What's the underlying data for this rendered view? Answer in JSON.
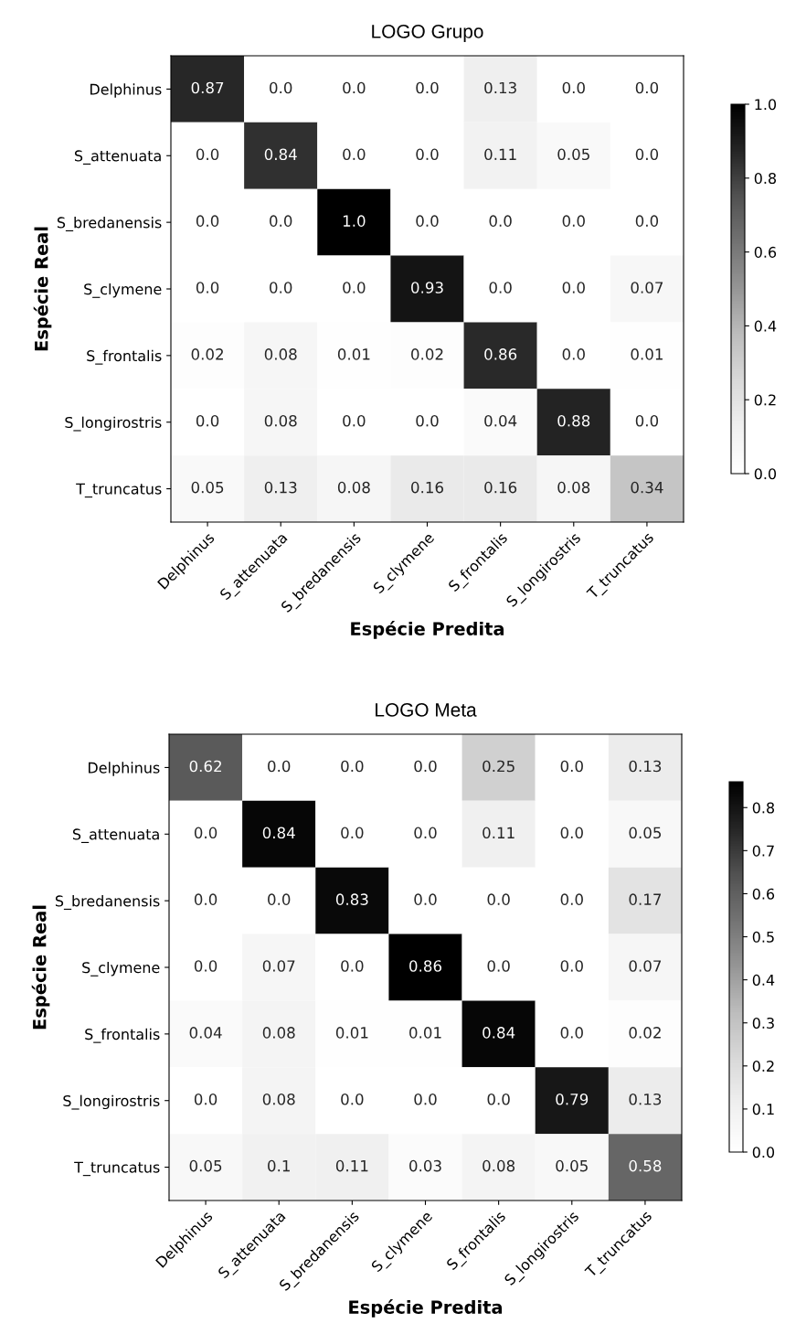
{
  "chart_data": [
    {
      "type": "heatmap",
      "title": "LOGO Grupo",
      "xlabel": "Espécie Predita",
      "ylabel": "Espécie Real",
      "categories": [
        "Delphinus",
        "S_attenuata",
        "S_bredanensis",
        "S_clymene",
        "S_frontalis",
        "S_longirostris",
        "T_truncatus"
      ],
      "y_categories": [
        "Delphinus",
        "S_attenuata",
        "S_bredanensis",
        "S_clymene",
        "S_frontalis",
        "S_longirostris",
        "T_truncatus"
      ],
      "cells": [
        [
          0.87,
          0,
          0,
          0,
          0.13,
          0,
          0
        ],
        [
          0,
          0.84,
          0,
          0,
          0.11,
          0.05,
          0
        ],
        [
          0,
          0,
          1.0,
          0,
          0,
          0,
          0
        ],
        [
          0,
          0,
          0,
          0.93,
          0,
          0,
          0.07
        ],
        [
          0.02,
          0.08,
          0.01,
          0.02,
          0.86,
          0,
          0.01
        ],
        [
          0,
          0.08,
          0,
          0,
          0.04,
          0.88,
          0
        ],
        [
          0.05,
          0.13,
          0.08,
          0.16,
          0.16,
          0.08,
          0.34
        ]
      ],
      "cell_labels": [
        [
          "0.87",
          "0.0",
          "0.0",
          "0.0",
          "0.13",
          "0.0",
          "0.0"
        ],
        [
          "0.0",
          "0.84",
          "0.0",
          "0.0",
          "0.11",
          "0.05",
          "0.0"
        ],
        [
          "0.0",
          "0.0",
          "1.0",
          "0.0",
          "0.0",
          "0.0",
          "0.0"
        ],
        [
          "0.0",
          "0.0",
          "0.0",
          "0.93",
          "0.0",
          "0.0",
          "0.07"
        ],
        [
          "0.02",
          "0.08",
          "0.01",
          "0.02",
          "0.86",
          "0.0",
          "0.01"
        ],
        [
          "0.0",
          "0.08",
          "0.0",
          "0.0",
          "0.04",
          "0.88",
          "0.0"
        ],
        [
          "0.05",
          "0.13",
          "0.08",
          "0.16",
          "0.16",
          "0.08",
          "0.34"
        ]
      ],
      "clim": [
        0,
        1.0
      ],
      "cticks": [
        {
          "value": 0,
          "label": "0.0"
        },
        {
          "value": 0.2,
          "label": "0.2"
        },
        {
          "value": 0.4,
          "label": "0.4"
        },
        {
          "value": 0.6,
          "label": "0.6"
        },
        {
          "value": 0.8,
          "label": "0.8"
        },
        {
          "value": 1.0,
          "label": "1.0"
        }
      ]
    },
    {
      "type": "heatmap",
      "title": "LOGO Meta",
      "xlabel": "Espécie Predita",
      "ylabel": "Espécie Real",
      "categories": [
        "Delphinus",
        "S_attenuata",
        "S_bredanensis",
        "S_clymene",
        "S_frontalis",
        "S_longirostris",
        "T_truncatus"
      ],
      "y_categories": [
        "Delphinus",
        "S_attenuata",
        "S_bredanensis",
        "S_clymene",
        "S_frontalis",
        "S_longirostris",
        "T_truncatus"
      ],
      "cells": [
        [
          0.62,
          0,
          0,
          0,
          0.25,
          0,
          0.13
        ],
        [
          0,
          0.84,
          0,
          0,
          0.11,
          0,
          0.05
        ],
        [
          0,
          0,
          0.83,
          0,
          0,
          0,
          0.17
        ],
        [
          0,
          0.07,
          0,
          0.86,
          0,
          0,
          0.07
        ],
        [
          0.04,
          0.08,
          0.01,
          0.01,
          0.84,
          0,
          0.02
        ],
        [
          0,
          0.08,
          0,
          0,
          0,
          0.79,
          0.13
        ],
        [
          0.05,
          0.1,
          0.11,
          0.03,
          0.08,
          0.05,
          0.58
        ]
      ],
      "cell_labels": [
        [
          "0.62",
          "0.0",
          "0.0",
          "0.0",
          "0.25",
          "0.0",
          "0.13"
        ],
        [
          "0.0",
          "0.84",
          "0.0",
          "0.0",
          "0.11",
          "0.0",
          "0.05"
        ],
        [
          "0.0",
          "0.0",
          "0.83",
          "0.0",
          "0.0",
          "0.0",
          "0.17"
        ],
        [
          "0.0",
          "0.07",
          "0.0",
          "0.86",
          "0.0",
          "0.0",
          "0.07"
        ],
        [
          "0.04",
          "0.08",
          "0.01",
          "0.01",
          "0.84",
          "0.0",
          "0.02"
        ],
        [
          "0.0",
          "0.08",
          "0.0",
          "0.0",
          "0.0",
          "0.79",
          "0.13"
        ],
        [
          "0.05",
          "0.1",
          "0.11",
          "0.03",
          "0.08",
          "0.05",
          "0.58"
        ]
      ],
      "clim": [
        0,
        0.86
      ],
      "cticks": [
        {
          "value": 0,
          "label": "0.0"
        },
        {
          "value": 0.1,
          "label": "0.1"
        },
        {
          "value": 0.2,
          "label": "0.2"
        },
        {
          "value": 0.3,
          "label": "0.3"
        },
        {
          "value": 0.4,
          "label": "0.4"
        },
        {
          "value": 0.5,
          "label": "0.5"
        },
        {
          "value": 0.6,
          "label": "0.6"
        },
        {
          "value": 0.7,
          "label": "0.7"
        },
        {
          "value": 0.8,
          "label": "0.8"
        }
      ]
    }
  ]
}
